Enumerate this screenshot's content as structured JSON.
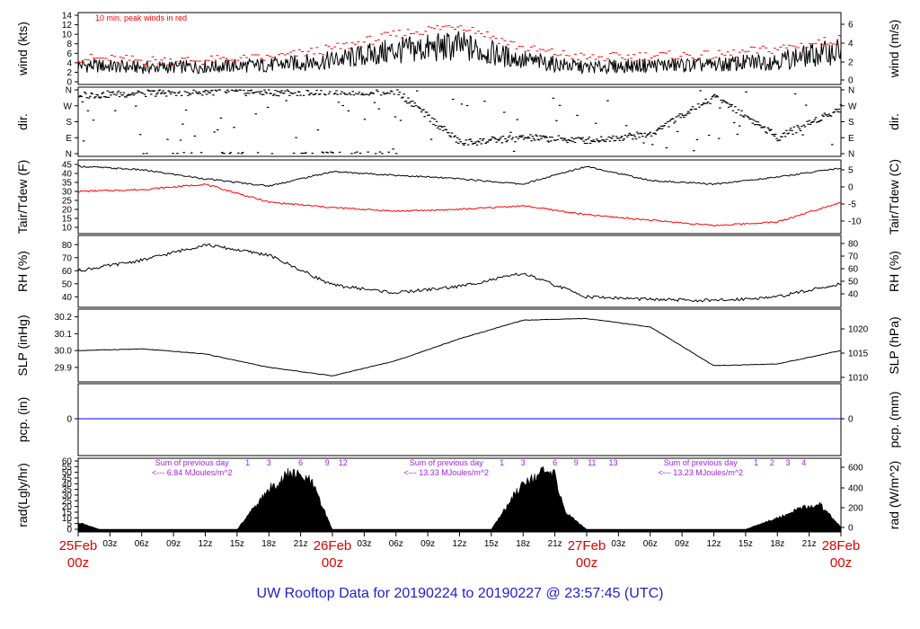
{
  "title": "UW Rooftop Data for 20190224  to  20190227 @ 23:57:45  (UTC)",
  "colors": {
    "line": "#000000",
    "peak": "#ff0000",
    "dew": "#ff0000",
    "precip": "#0000ff",
    "annot": "#a020f0",
    "date": "#e00000",
    "title": "#1f1fd0"
  },
  "x_axis": {
    "hour_ticks": [
      "03z",
      "06z",
      "09z",
      "12z",
      "15z",
      "18z",
      "21z",
      "03z",
      "06z",
      "09z",
      "12z",
      "15z",
      "18z",
      "21z",
      "03z",
      "06z",
      "09z",
      "12z",
      "15z",
      "18z",
      "21z"
    ],
    "day_labels": [
      {
        "date": "25Feb",
        "hour": "00z"
      },
      {
        "date": "26Feb",
        "hour": "00z"
      },
      {
        "date": "27Feb",
        "hour": "00z"
      },
      {
        "date": "28Feb",
        "hour": "00z"
      }
    ]
  },
  "chart_data": [
    {
      "type": "line",
      "panel": "wind",
      "ylabel_left": "wind (kts)",
      "ylabel_right": "wind (m/s)",
      "left_ticks": [
        "0",
        "2",
        "4",
        "6",
        "8",
        "10",
        "12",
        "14"
      ],
      "right_ticks": [
        "0",
        "2",
        "4",
        "6"
      ],
      "ylim": [
        0,
        14
      ],
      "annotation": "10 min. peak winds in red",
      "x": [
        0,
        6,
        12,
        18,
        24,
        30,
        36,
        42,
        48,
        54,
        60,
        66,
        72
      ],
      "series": [
        {
          "values": [
            3.5,
            3,
            3.2,
            3.5,
            4.5,
            6.5,
            7.5,
            4.5,
            3,
            3.5,
            3.5,
            4.5,
            6.5
          ]
        },
        {
          "values": [
            5,
            4.5,
            4.5,
            5,
            7,
            10,
            12,
            7,
            5,
            5.5,
            5.5,
            7,
            9
          ]
        }
      ]
    },
    {
      "type": "scatter",
      "panel": "dir",
      "ylabel_left": "dir.",
      "ylabel_right": "dir.",
      "left_ticks": [
        "N",
        "W",
        "S",
        "E",
        "N"
      ],
      "right_ticks": [
        "N",
        "W",
        "S",
        "E",
        "N"
      ],
      "x": [
        0,
        6,
        12,
        18,
        24,
        30,
        36,
        42,
        48,
        54,
        60,
        66,
        72
      ],
      "values": [
        330,
        340,
        350,
        345,
        350,
        350,
        60,
        90,
        75,
        110,
        330,
        90,
        260
      ]
    },
    {
      "type": "line",
      "panel": "temp",
      "ylabel_left": "Tair/Tdew (F)",
      "ylabel_right": "Tair/Tdew (C)",
      "left_ticks": [
        "10",
        "15",
        "20",
        "25",
        "30",
        "35",
        "40",
        "45"
      ],
      "right_ticks": [
        "-10",
        "-5",
        "0",
        "5"
      ],
      "ylim": [
        8,
        46
      ],
      "x": [
        0,
        6,
        12,
        18,
        24,
        30,
        36,
        42,
        48,
        54,
        60,
        66,
        72
      ],
      "series": [
        {
          "values": [
            44,
            42,
            37,
            33,
            41,
            39,
            37,
            34,
            44,
            36,
            34,
            38,
            43
          ]
        },
        {
          "values": [
            30,
            31,
            34,
            24,
            21,
            19,
            20,
            22,
            17,
            14,
            11,
            13,
            24
          ]
        }
      ]
    },
    {
      "type": "line",
      "panel": "rh",
      "ylabel_left": "RH (%)",
      "ylabel_right": "RH (%)",
      "left_ticks": [
        "40",
        "50",
        "60",
        "70",
        "80"
      ],
      "right_ticks": [
        "40",
        "50",
        "60",
        "70",
        "80"
      ],
      "ylim": [
        34,
        85
      ],
      "x": [
        0,
        6,
        12,
        18,
        24,
        30,
        36,
        42,
        48,
        54,
        60,
        66,
        72
      ],
      "values": [
        60,
        68,
        80,
        72,
        49,
        43,
        48,
        58,
        40,
        38,
        37,
        40,
        50
      ]
    },
    {
      "type": "line",
      "panel": "slp",
      "ylabel_left": "SLP (inHg)",
      "ylabel_right": "SLP (hPa)",
      "left_ticks": [
        "29.9",
        "30.0",
        "30.1",
        "30.2"
      ],
      "right_ticks": [
        "1010",
        "1015",
        "1020"
      ],
      "ylim": [
        29.83,
        30.23
      ],
      "x": [
        0,
        6,
        12,
        18,
        24,
        30,
        36,
        42,
        48,
        54,
        60,
        66,
        72
      ],
      "values": [
        30.0,
        30.01,
        29.98,
        29.9,
        29.85,
        29.94,
        30.07,
        30.18,
        30.19,
        30.14,
        29.91,
        29.92,
        30.0
      ]
    },
    {
      "type": "line",
      "panel": "precip",
      "ylabel_left": "pcp. (in)",
      "ylabel_right": "pcp. (mm)",
      "left_ticks": [
        "0"
      ],
      "right_ticks": [
        "0"
      ],
      "x": [
        0,
        72
      ],
      "values": [
        0,
        0
      ]
    },
    {
      "type": "area",
      "panel": "rad",
      "ylabel_left": "rad(Lgly/hr)",
      "ylabel_right": "rad (W/m^2)",
      "left_ticks": [
        "0",
        "5",
        "10",
        "15",
        "20",
        "25",
        "30",
        "35",
        "40",
        "45",
        "50",
        "55",
        "60"
      ],
      "right_ticks": [
        "0",
        "200",
        "400",
        "600"
      ],
      "ylim": [
        0,
        60
      ],
      "x": [
        0,
        2,
        15,
        18,
        20,
        22,
        24,
        39,
        42,
        44,
        45,
        46,
        48,
        63,
        66,
        68,
        70,
        72
      ],
      "values": [
        6,
        0,
        0,
        35,
        50,
        42,
        0,
        0,
        42,
        50,
        47,
        15,
        0,
        0,
        10,
        18,
        22,
        2
      ],
      "hour_labels": [
        {
          "label": "1",
          "x": 16
        },
        {
          "label": "3",
          "x": 18
        },
        {
          "label": "6",
          "x": 21
        },
        {
          "label": "9",
          "x": 23.5
        },
        {
          "label": "12",
          "x": 25
        },
        {
          "label": "1",
          "x": 40
        },
        {
          "label": "3",
          "x": 42
        },
        {
          "label": "6",
          "x": 45
        },
        {
          "label": "9",
          "x": 47
        },
        {
          "label": "11",
          "x": 48.5
        },
        {
          "label": "13",
          "x": 50.5
        },
        {
          "label": "1",
          "x": 64
        },
        {
          "label": "2",
          "x": 65.5
        },
        {
          "label": "3",
          "x": 67
        },
        {
          "label": "4",
          "x": 68.5
        }
      ],
      "daily_sums": [
        {
          "line1": "Sum of previous day",
          "line2": "<--- 6.84 MJoules/m^2",
          "x": 6
        },
        {
          "line1": "Sum of previous day",
          "line2": "<--- 13.33 MJoules/m^2",
          "x": 30
        },
        {
          "line1": "Sum of previous day",
          "line2": "<--- 13.23 MJoules/m^2",
          "x": 54
        }
      ]
    }
  ]
}
